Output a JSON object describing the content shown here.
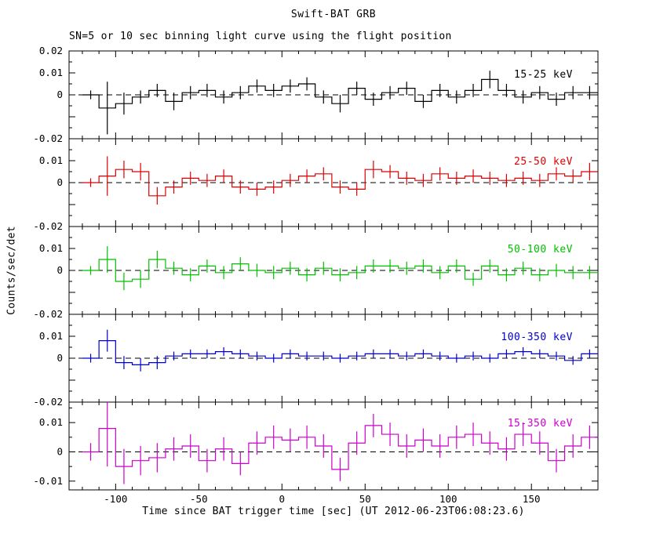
{
  "chart_data": {
    "type": "line",
    "style": "step-histogram-with-errorbars",
    "title": "Swift-BAT GRB",
    "subtitle": "SN=5 or 10 sec binning light curve using the flight position",
    "xlabel": "Time since BAT trigger time [sec] (UT 2012-06-23T06:08:23.6)",
    "ylabel": "Counts/sec/det",
    "grid": false,
    "xlim": [
      -128,
      190
    ],
    "xticks_major": [
      -100,
      -50,
      0,
      50,
      100,
      150
    ],
    "xtick_minor_step": 10,
    "bin_halfwidth": 5,
    "x_centers": [
      -115,
      -105,
      -95,
      -85,
      -75,
      -65,
      -55,
      -45,
      -35,
      -25,
      -15,
      -5,
      5,
      15,
      25,
      35,
      45,
      55,
      65,
      75,
      85,
      95,
      105,
      115,
      125,
      135,
      145,
      155,
      165,
      175,
      185
    ],
    "panels": [
      {
        "label": "15-25 keV",
        "color": "#000000",
        "ylim": [
          -0.02,
          0.02
        ],
        "yticks": [
          {
            "v": 0.02,
            "label": "0.02"
          },
          {
            "v": 0.01,
            "label": "0.01"
          },
          {
            "v": 0,
            "label": "0"
          },
          {
            "v": -0.02,
            "label": "-0.02"
          }
        ],
        "values": [
          0.0,
          -0.006,
          -0.004,
          -0.001,
          0.002,
          -0.003,
          0.001,
          0.002,
          -0.001,
          0.001,
          0.004,
          0.002,
          0.004,
          0.005,
          -0.001,
          -0.004,
          0.003,
          -0.002,
          0.001,
          0.003,
          -0.003,
          0.002,
          -0.001,
          0.002,
          0.007,
          0.002,
          -0.001,
          0.001,
          -0.002,
          0.001,
          0.001
        ],
        "errors": [
          0.002,
          0.012,
          0.005,
          0.003,
          0.003,
          0.004,
          0.003,
          0.003,
          0.003,
          0.003,
          0.003,
          0.003,
          0.003,
          0.003,
          0.003,
          0.004,
          0.003,
          0.003,
          0.003,
          0.003,
          0.003,
          0.003,
          0.003,
          0.003,
          0.004,
          0.003,
          0.003,
          0.003,
          0.003,
          0.003,
          0.003
        ]
      },
      {
        "label": "25-50 keV",
        "color": "#dd0000",
        "ylim": [
          -0.02,
          0.02
        ],
        "yticks": [
          {
            "v": 0.01,
            "label": "0.01"
          },
          {
            "v": 0,
            "label": "0"
          },
          {
            "v": -0.02,
            "label": "-0.02"
          }
        ],
        "values": [
          0.0,
          0.003,
          0.006,
          0.005,
          -0.006,
          -0.002,
          0.002,
          0.001,
          0.003,
          -0.002,
          -0.003,
          -0.002,
          0.001,
          0.003,
          0.004,
          -0.002,
          -0.003,
          0.006,
          0.005,
          0.002,
          0.001,
          0.004,
          0.002,
          0.003,
          0.002,
          0.001,
          0.002,
          0.001,
          0.004,
          0.003,
          0.005
        ],
        "errors": [
          0.002,
          0.009,
          0.004,
          0.004,
          0.004,
          0.003,
          0.003,
          0.003,
          0.003,
          0.003,
          0.003,
          0.003,
          0.003,
          0.003,
          0.003,
          0.003,
          0.003,
          0.004,
          0.003,
          0.003,
          0.003,
          0.003,
          0.003,
          0.003,
          0.003,
          0.003,
          0.003,
          0.003,
          0.003,
          0.003,
          0.004
        ]
      },
      {
        "label": "50-100 keV",
        "color": "#00c000",
        "ylim": [
          -0.02,
          0.02
        ],
        "yticks": [
          {
            "v": 0.01,
            "label": "0.01"
          },
          {
            "v": 0,
            "label": "0"
          },
          {
            "v": -0.02,
            "label": "-0.02"
          }
        ],
        "values": [
          0.0,
          0.005,
          -0.005,
          -0.004,
          0.005,
          0.001,
          -0.002,
          0.002,
          -0.001,
          0.003,
          0.0,
          -0.001,
          0.001,
          -0.002,
          0.001,
          -0.002,
          -0.001,
          0.002,
          0.002,
          0.001,
          0.002,
          -0.001,
          0.002,
          -0.004,
          0.002,
          -0.002,
          0.001,
          -0.002,
          0.0,
          -0.001,
          -0.001
        ],
        "errors": [
          0.002,
          0.006,
          0.004,
          0.004,
          0.004,
          0.003,
          0.003,
          0.003,
          0.003,
          0.003,
          0.003,
          0.003,
          0.003,
          0.003,
          0.003,
          0.003,
          0.003,
          0.003,
          0.003,
          0.003,
          0.003,
          0.003,
          0.003,
          0.003,
          0.003,
          0.003,
          0.003,
          0.003,
          0.003,
          0.003,
          0.003
        ]
      },
      {
        "label": "100-350 keV",
        "color": "#0000cc",
        "ylim": [
          -0.02,
          0.02
        ],
        "yticks": [
          {
            "v": 0.01,
            "label": "0.01"
          },
          {
            "v": 0,
            "label": "0"
          },
          {
            "v": -0.02,
            "label": "-0.02"
          }
        ],
        "values": [
          0.0,
          0.008,
          -0.002,
          -0.003,
          -0.002,
          0.001,
          0.002,
          0.002,
          0.003,
          0.002,
          0.001,
          0.0,
          0.002,
          0.001,
          0.001,
          0.0,
          0.001,
          0.002,
          0.002,
          0.001,
          0.002,
          0.001,
          0.0,
          0.001,
          0.0,
          0.002,
          0.003,
          0.002,
          0.001,
          -0.001,
          0.002
        ],
        "errors": [
          0.002,
          0.005,
          0.003,
          0.003,
          0.003,
          0.002,
          0.002,
          0.002,
          0.002,
          0.002,
          0.002,
          0.002,
          0.002,
          0.002,
          0.002,
          0.002,
          0.002,
          0.002,
          0.002,
          0.002,
          0.002,
          0.002,
          0.002,
          0.002,
          0.002,
          0.002,
          0.002,
          0.002,
          0.002,
          0.002,
          0.002
        ]
      },
      {
        "label": "15-350 keV",
        "color": "#cc00cc",
        "ylim": [
          -0.013,
          0.017
        ],
        "yticks": [
          {
            "v": 0.01,
            "label": "0.01"
          },
          {
            "v": 0,
            "label": "0"
          },
          {
            "v": -0.01,
            "label": "-0.01"
          }
        ],
        "values": [
          0.0,
          0.008,
          -0.005,
          -0.003,
          -0.002,
          0.001,
          0.002,
          -0.003,
          0.001,
          -0.004,
          0.003,
          0.005,
          0.004,
          0.005,
          0.002,
          -0.006,
          0.003,
          0.009,
          0.006,
          0.002,
          0.004,
          0.002,
          0.005,
          0.006,
          0.003,
          0.001,
          0.006,
          0.003,
          -0.003,
          0.002,
          0.005
        ],
        "errors": [
          0.003,
          0.013,
          0.006,
          0.005,
          0.005,
          0.004,
          0.004,
          0.004,
          0.004,
          0.004,
          0.004,
          0.004,
          0.004,
          0.004,
          0.004,
          0.004,
          0.004,
          0.004,
          0.004,
          0.004,
          0.004,
          0.004,
          0.004,
          0.004,
          0.004,
          0.004,
          0.004,
          0.004,
          0.004,
          0.004,
          0.004
        ]
      }
    ]
  }
}
